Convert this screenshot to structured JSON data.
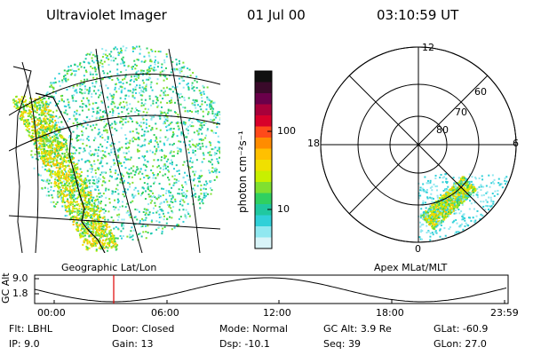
{
  "header": {
    "instrument": "Ultraviolet Imager",
    "date": "01 Jul 00",
    "time": "03:10:59 UT"
  },
  "colorbar": {
    "unit_label": "photon cm⁻²s⁻¹",
    "ticks": [
      "100",
      "10"
    ],
    "colors": [
      "#101010",
      "#3a0a2a",
      "#6a004a",
      "#a8003a",
      "#d8002a",
      "#ff4a1a",
      "#ff8c00",
      "#ffc000",
      "#f0e000",
      "#c8f000",
      "#80e030",
      "#30d060",
      "#20c8a0",
      "#30d0d8",
      "#90e8f0",
      "#d8f4f8"
    ]
  },
  "geo_panel": {
    "label": "Geographic Lat/Lon"
  },
  "polar_panel": {
    "label": "Apex MLat/MLT",
    "mlt_labels": {
      "top": "12",
      "right": "6",
      "bottom": "0",
      "left": "18"
    },
    "lat_labels": [
      "60",
      "70",
      "80"
    ]
  },
  "altitude_plot": {
    "ylabel": "GC Alt",
    "yticks": [
      "9.0",
      "1.8"
    ],
    "xticks": [
      "00:00",
      "06:00",
      "12:00",
      "18:00",
      "23:59"
    ],
    "current_marker_color": "#e00000"
  },
  "footer": {
    "row1": [
      {
        "label": "Flt:",
        "value": "LBHL"
      },
      {
        "label": "Door:",
        "value": "Closed"
      },
      {
        "label": "Mode:",
        "value": "Normal"
      },
      {
        "label": "GC Alt:",
        "value": "3.9 Re"
      },
      {
        "label": "GLat:",
        "value": "-60.9"
      }
    ],
    "row2": [
      {
        "label": "IP:",
        "value": "9.0"
      },
      {
        "label": "Gain:",
        "value": "13"
      },
      {
        "label": "Dsp:",
        "value": "-10.1"
      },
      {
        "label": "Seq:",
        "value": "39"
      },
      {
        "label": "GLon:",
        "value": "27.0"
      }
    ]
  }
}
